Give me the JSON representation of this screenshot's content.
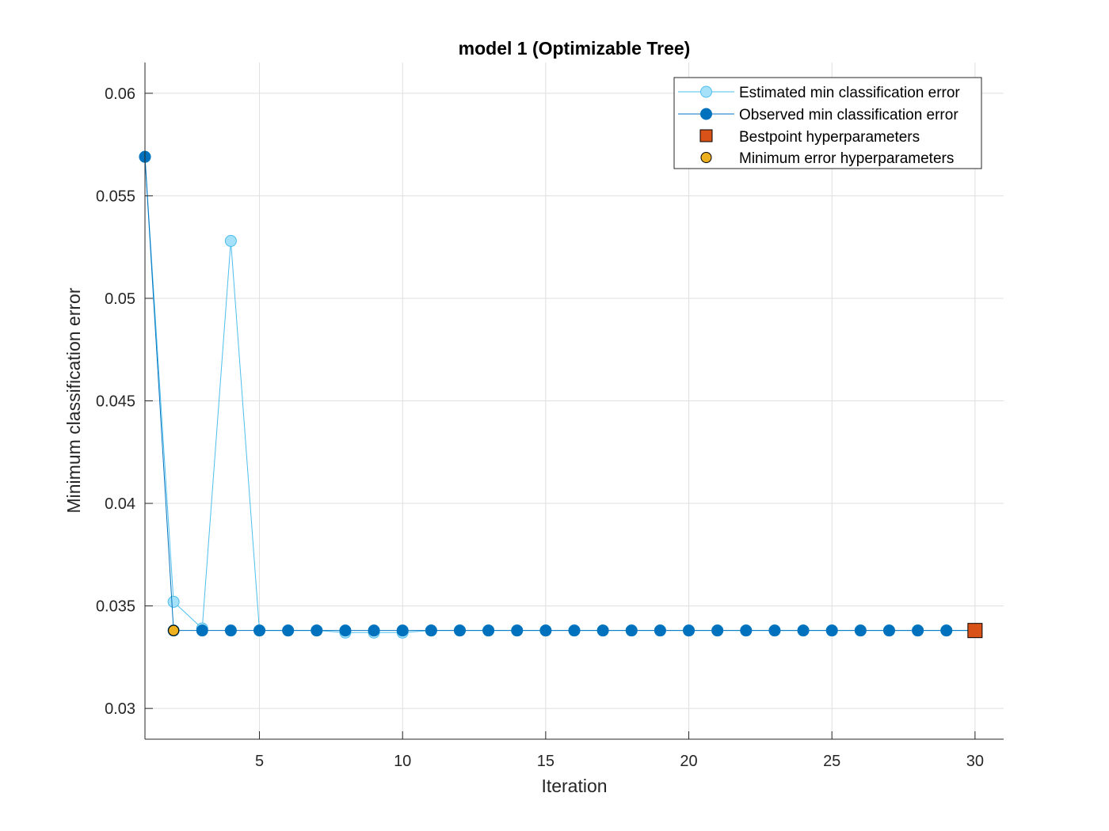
{
  "chart_data": {
    "type": "line",
    "title": "model 1 (Optimizable Tree)",
    "xlabel": "Iteration",
    "ylabel": "Minimum classification error",
    "xlim": [
      1,
      31
    ],
    "ylim": [
      0.0285,
      0.0615
    ],
    "xticks": [
      5,
      10,
      15,
      20,
      25,
      30
    ],
    "xtick_labels": [
      "5",
      "10",
      "15",
      "20",
      "25",
      "30"
    ],
    "yticks": [
      0.03,
      0.035,
      0.04,
      0.045,
      0.05,
      0.055,
      0.06
    ],
    "ytick_labels": [
      "0.03",
      "0.035",
      "0.04",
      "0.045",
      "0.05",
      "0.055",
      "0.06"
    ],
    "grid": true,
    "legend_position": "top-right",
    "series": [
      {
        "name": "Estimated min classification error",
        "color": "#4DBEEE",
        "marker": "circle",
        "x": [
          1,
          2,
          3,
          4,
          5,
          6,
          7,
          8,
          9,
          10,
          11,
          12,
          13,
          14,
          15,
          16,
          17,
          18,
          19,
          20,
          21,
          22,
          23,
          24,
          25,
          26,
          27,
          28,
          29,
          30
        ],
        "values": [
          0.0569,
          0.0352,
          0.0339,
          0.0528,
          0.0338,
          0.0338,
          0.0338,
          0.0337,
          0.0337,
          0.0337,
          0.0338,
          0.0338,
          0.0338,
          0.0338,
          0.0338,
          0.0338,
          0.0338,
          0.0338,
          0.0338,
          0.0338,
          0.0338,
          0.0338,
          0.0338,
          0.0338,
          0.0338,
          0.0338,
          0.0338,
          0.0338,
          0.0338,
          0.0338
        ]
      },
      {
        "name": "Observed min classification error",
        "color": "#0072BD",
        "marker": "circle",
        "x": [
          1,
          2,
          3,
          4,
          5,
          6,
          7,
          8,
          9,
          10,
          11,
          12,
          13,
          14,
          15,
          16,
          17,
          18,
          19,
          20,
          21,
          22,
          23,
          24,
          25,
          26,
          27,
          28,
          29,
          30
        ],
        "values": [
          0.0569,
          0.0338,
          0.0338,
          0.0338,
          0.0338,
          0.0338,
          0.0338,
          0.0338,
          0.0338,
          0.0338,
          0.0338,
          0.0338,
          0.0338,
          0.0338,
          0.0338,
          0.0338,
          0.0338,
          0.0338,
          0.0338,
          0.0338,
          0.0338,
          0.0338,
          0.0338,
          0.0338,
          0.0338,
          0.0338,
          0.0338,
          0.0338,
          0.0338,
          0.0338
        ]
      }
    ],
    "bestpoint": {
      "name": "Bestpoint hyperparameters",
      "color": "#D95319",
      "marker": "square",
      "x": 30,
      "y": 0.0338
    },
    "min_error_point": {
      "name": "Minimum error hyperparameters",
      "color": "#EDB120",
      "marker": "circle",
      "x": 2,
      "y": 0.0338
    }
  }
}
